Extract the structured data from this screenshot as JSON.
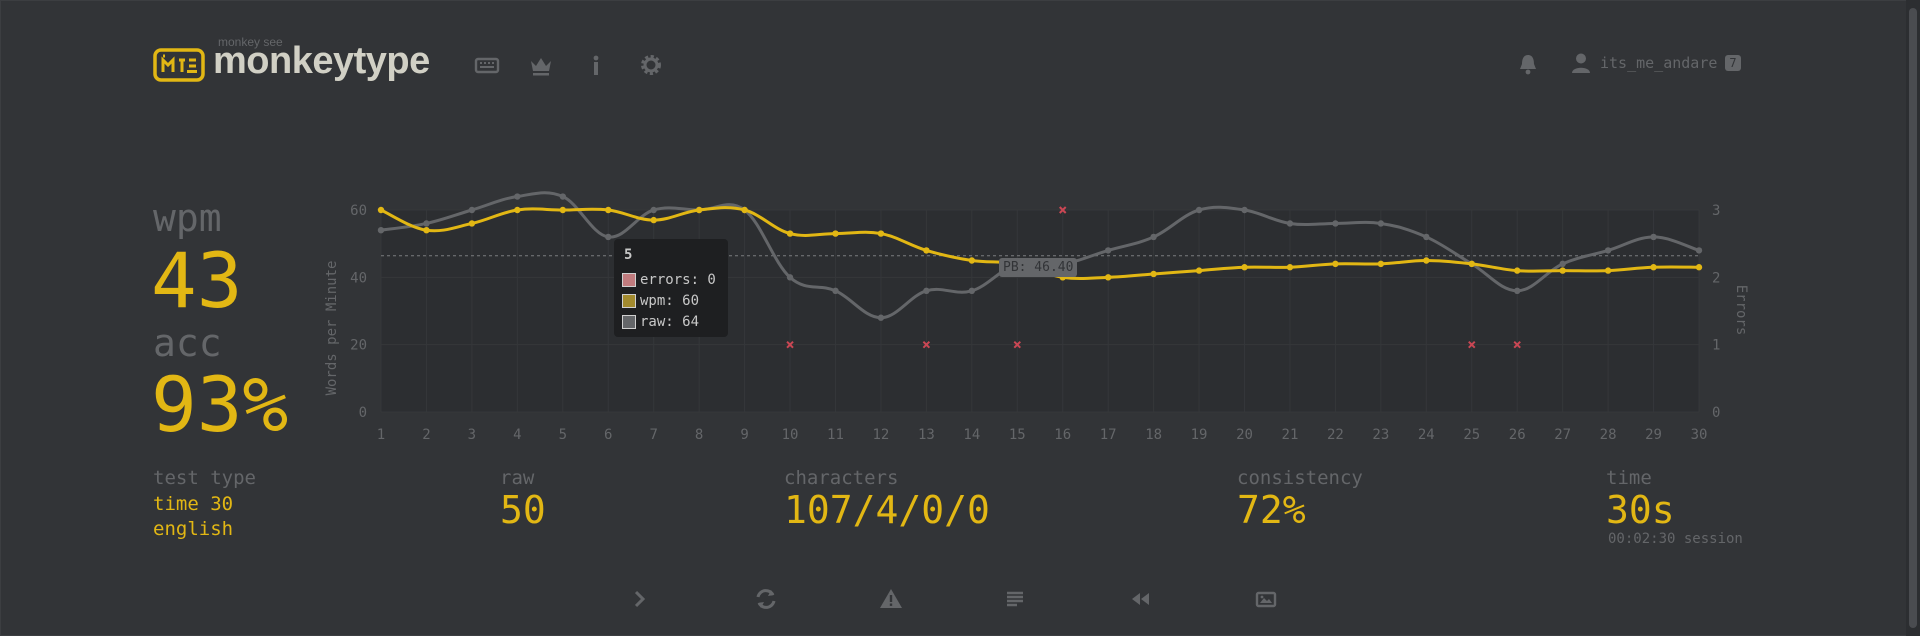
{
  "header": {
    "logo_sub": "monkey see",
    "logo_text": "monkeytype",
    "username": "its_me_andare",
    "user_badge": "7",
    "nav_icons": [
      "keyboard-icon",
      "crown-icon",
      "info-icon",
      "gear-icon"
    ],
    "bell_icon": "bell-icon",
    "user_icon": "user-icon"
  },
  "stats": {
    "wpm_label": "wpm",
    "wpm_value": "43",
    "acc_label": "acc",
    "acc_value": "93%",
    "test_type_label": "test type",
    "test_type_mode": "time 30",
    "test_type_language": "english",
    "raw_label": "raw",
    "raw_value": "50",
    "characters_label": "characters",
    "characters_value": "107/4/0/0",
    "consistency_label": "consistency",
    "consistency_value": "72%",
    "time_label": "time",
    "time_value": "30s",
    "session": "00:02:30 session"
  },
  "tooltip": {
    "title": "5",
    "errors": "errors: 0",
    "wpm": "wpm: 60",
    "raw": "raw: 64"
  },
  "colors": {
    "background": "#323437",
    "main": "#e2b714",
    "sub": "#646669",
    "text": "#d1d0c5",
    "error": "#ca4754"
  },
  "chart_data": {
    "type": "line",
    "x": [
      1,
      2,
      3,
      4,
      5,
      6,
      7,
      8,
      9,
      10,
      11,
      12,
      13,
      14,
      15,
      16,
      17,
      18,
      19,
      20,
      21,
      22,
      23,
      24,
      25,
      26,
      27,
      28,
      29,
      30
    ],
    "ylabel": "Words per Minute",
    "y2label": "Errors",
    "ylim": [
      0,
      60
    ],
    "y2lim": [
      0,
      3
    ],
    "yticks": [
      "0",
      "20",
      "40",
      "60"
    ],
    "y2ticks": [
      "0",
      "1",
      "2",
      "3"
    ],
    "pb_value": 46.4,
    "pb_label": "PB: 46.40",
    "series": [
      {
        "name": "wpm",
        "color": "#e2b714",
        "values": [
          60,
          54,
          56,
          60,
          60,
          60,
          57,
          60,
          60,
          53,
          53,
          53,
          48,
          45,
          44,
          40,
          40,
          41,
          42,
          43,
          43,
          44,
          44,
          45,
          44,
          42,
          42,
          42,
          43,
          43
        ]
      },
      {
        "name": "raw",
        "color": "#646669",
        "values": [
          54,
          56,
          60,
          64,
          64,
          52,
          60,
          60,
          60,
          40,
          36,
          28,
          36,
          36,
          44,
          44,
          48,
          52,
          60,
          60,
          56,
          56,
          56,
          52,
          44,
          36,
          44,
          48,
          52,
          48
        ]
      },
      {
        "name": "errors",
        "color": "#ca4754",
        "points": [
          [
            10,
            1
          ],
          [
            13,
            1
          ],
          [
            15,
            1
          ],
          [
            16,
            3
          ],
          [
            25,
            1
          ],
          [
            26,
            1
          ]
        ]
      }
    ]
  }
}
